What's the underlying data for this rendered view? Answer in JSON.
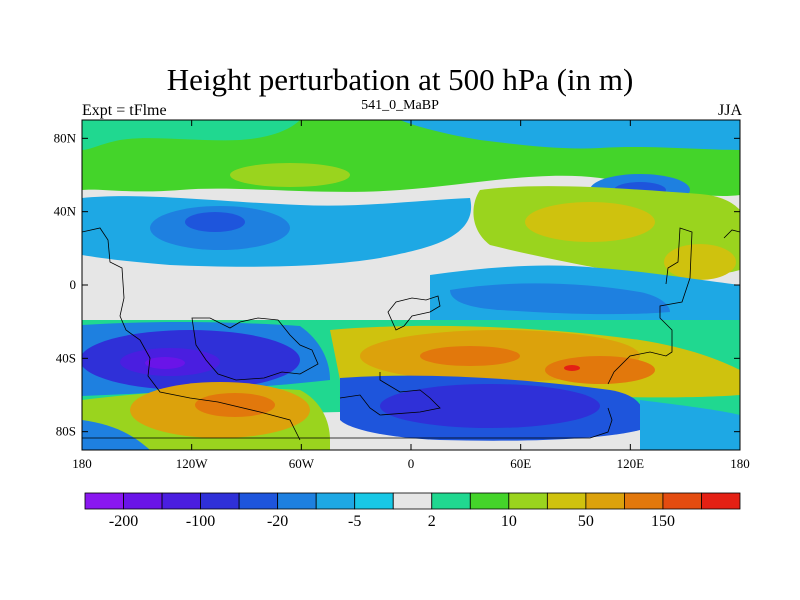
{
  "title": "Height perturbation at 500 hPa (in m)",
  "left_string": "Expt = tFlme",
  "center_string": "541_0_MaBP",
  "right_string": "JJA",
  "map": {
    "x_ticks": [
      "180",
      "120W",
      "60W",
      "0",
      "60E",
      "120E",
      "180"
    ],
    "y_ticks": [
      "80N",
      "40N",
      "0",
      "40S",
      "80S"
    ],
    "y_values": [
      80,
      40,
      0,
      -40,
      -80
    ],
    "lon_range": [
      -180,
      180
    ],
    "lat_range": [
      -90,
      90
    ]
  },
  "colorbar": {
    "colors": [
      "#8a17f0",
      "#6a14e8",
      "#4a1ee0",
      "#2f30d8",
      "#1e55dc",
      "#1e80e0",
      "#1ea8e4",
      "#18c8e6",
      "#e6e6e6",
      "#20d890",
      "#44d42a",
      "#9ad41e",
      "#cfc20e",
      "#dca20c",
      "#e2780c",
      "#e44c10",
      "#e42014"
    ],
    "labels": [
      "-200",
      "-100",
      "-20",
      "-5",
      "2",
      "10",
      "50",
      "150"
    ]
  }
}
